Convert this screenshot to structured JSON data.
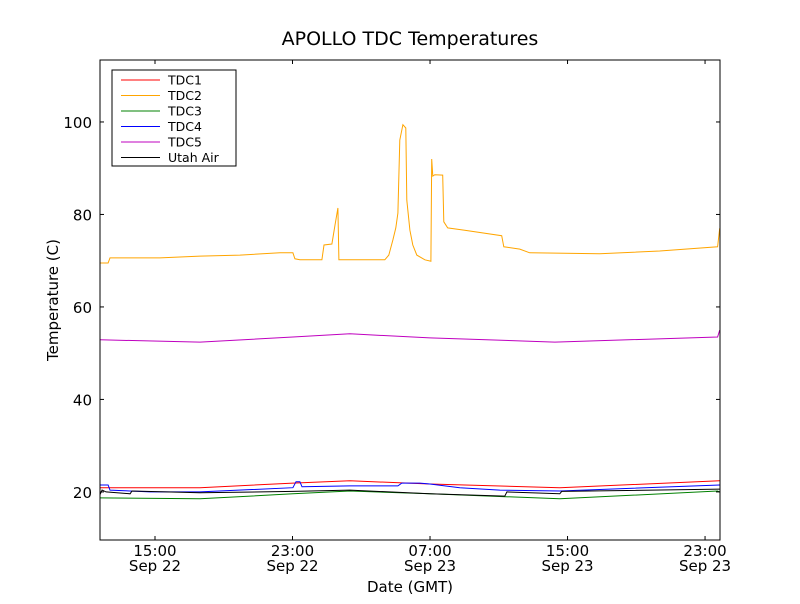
{
  "chart_data": {
    "type": "line",
    "title": "APOLLO TDC Temperatures",
    "xlabel": "Date (GMT)",
    "ylabel": "Temperature (C)",
    "x_units": "hours since Sep 22 00:00 GMT",
    "xlim": [
      11.8,
      47.87
    ],
    "ylim": [
      9.6,
      113.4
    ],
    "grid": false,
    "legend_placement": "top-left",
    "yticks": [
      {
        "value": 20,
        "label": "20"
      },
      {
        "value": 40,
        "label": "40"
      },
      {
        "value": 60,
        "label": "60"
      },
      {
        "value": 80,
        "label": "80"
      },
      {
        "value": 100,
        "label": "100"
      }
    ],
    "xticks": [
      {
        "value": 15,
        "time": "15:00",
        "date": "Sep 22"
      },
      {
        "value": 23,
        "time": "23:00",
        "date": "Sep 22"
      },
      {
        "value": 31,
        "time": "07:00",
        "date": "Sep 23"
      },
      {
        "value": 39,
        "time": "15:00",
        "date": "Sep 23"
      },
      {
        "value": 47,
        "time": "23:00",
        "date": "Sep 23"
      }
    ],
    "series": [
      {
        "name": "TDC1",
        "color": "#ff0000",
        "points": [
          [
            11.8,
            20.9
          ],
          [
            17.62,
            20.9
          ],
          [
            23.02,
            21.9
          ],
          [
            26.34,
            22.4
          ],
          [
            30.99,
            21.7
          ],
          [
            38.55,
            20.9
          ],
          [
            47.85,
            22.4
          ]
        ]
      },
      {
        "name": "TDC2",
        "color": "#ffa500",
        "points": [
          [
            11.8,
            69.5
          ],
          [
            12.27,
            69.5
          ],
          [
            12.38,
            70.6
          ],
          [
            15.29,
            70.6
          ],
          [
            17.62,
            71.0
          ],
          [
            19.94,
            71.2
          ],
          [
            22.27,
            71.7
          ],
          [
            23.02,
            71.7
          ],
          [
            23.14,
            70.4
          ],
          [
            23.43,
            70.2
          ],
          [
            24.71,
            70.2
          ],
          [
            24.83,
            73.4
          ],
          [
            25.29,
            73.6
          ],
          [
            25.47,
            77.7
          ],
          [
            25.64,
            81.4
          ],
          [
            25.7,
            70.2
          ],
          [
            27.5,
            70.2
          ],
          [
            28.37,
            70.2
          ],
          [
            28.6,
            71.2
          ],
          [
            28.84,
            74.5
          ],
          [
            29.01,
            77.1
          ],
          [
            29.13,
            80.3
          ],
          [
            29.24,
            96.1
          ],
          [
            29.42,
            99.4
          ],
          [
            29.59,
            98.7
          ],
          [
            29.65,
            83.1
          ],
          [
            29.83,
            76.6
          ],
          [
            30.0,
            73.4
          ],
          [
            30.23,
            71.2
          ],
          [
            30.7,
            70.2
          ],
          [
            31.05,
            69.9
          ],
          [
            31.1,
            92.0
          ],
          [
            31.16,
            88.3
          ],
          [
            31.28,
            88.6
          ],
          [
            31.74,
            88.5
          ],
          [
            31.8,
            78.4
          ],
          [
            32.03,
            77.1
          ],
          [
            33.02,
            76.6
          ],
          [
            35.17,
            75.4
          ],
          [
            35.29,
            73.0
          ],
          [
            36.22,
            72.5
          ],
          [
            36.8,
            71.7
          ],
          [
            40.87,
            71.5
          ],
          [
            44.36,
            72.1
          ],
          [
            47.73,
            73.0
          ],
          [
            47.85,
            77.0
          ]
        ]
      },
      {
        "name": "TDC3",
        "color": "#008000",
        "points": [
          [
            11.8,
            18.7
          ],
          [
            17.62,
            18.5
          ],
          [
            23.02,
            19.6
          ],
          [
            26.34,
            20.2
          ],
          [
            30.99,
            19.6
          ],
          [
            38.55,
            18.5
          ],
          [
            47.73,
            20.2
          ],
          [
            47.85,
            20.0
          ]
        ]
      },
      {
        "name": "TDC4",
        "color": "#0000ff",
        "points": [
          [
            11.8,
            21.5
          ],
          [
            12.27,
            21.5
          ],
          [
            12.38,
            20.4
          ],
          [
            14.71,
            20.0
          ],
          [
            17.62,
            20.0
          ],
          [
            23.02,
            20.9
          ],
          [
            23.2,
            22.2
          ],
          [
            23.43,
            22.2
          ],
          [
            23.55,
            21.1
          ],
          [
            26.34,
            21.3
          ],
          [
            29.13,
            21.3
          ],
          [
            29.36,
            21.9
          ],
          [
            30.41,
            21.9
          ],
          [
            30.99,
            21.7
          ],
          [
            32.73,
            20.9
          ],
          [
            35.06,
            20.4
          ],
          [
            38.55,
            20.2
          ],
          [
            47.85,
            21.5
          ]
        ]
      },
      {
        "name": "TDC5",
        "color": "#bf00bf",
        "points": [
          [
            11.8,
            52.9
          ],
          [
            17.62,
            52.4
          ],
          [
            23.02,
            53.5
          ],
          [
            26.34,
            54.2
          ],
          [
            30.99,
            53.3
          ],
          [
            38.26,
            52.4
          ],
          [
            47.73,
            53.5
          ],
          [
            47.85,
            55.0
          ]
        ]
      },
      {
        "name": "Utah Air",
        "color": "#000000",
        "points": [
          [
            11.8,
            19.4
          ],
          [
            11.92,
            20.4
          ],
          [
            12.15,
            20.0
          ],
          [
            13.55,
            19.6
          ],
          [
            13.66,
            20.2
          ],
          [
            17.62,
            19.8
          ],
          [
            23.02,
            20.1
          ],
          [
            26.34,
            20.4
          ],
          [
            30.99,
            19.6
          ],
          [
            35.35,
            19.1
          ],
          [
            35.47,
            20.0
          ],
          [
            38.55,
            19.6
          ],
          [
            38.66,
            20.1
          ],
          [
            47.85,
            20.6
          ]
        ]
      }
    ]
  }
}
